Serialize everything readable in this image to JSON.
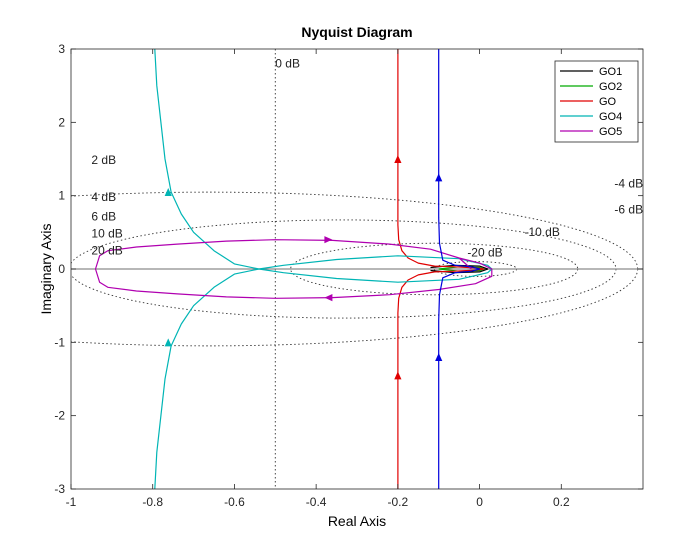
{
  "chart_data": {
    "type": "line",
    "title": "Nyquist Diagram",
    "xlabel": "Real Axis",
    "ylabel": "Imaginary Axis",
    "xlim": [
      -1,
      0.4
    ],
    "ylim": [
      -3,
      3
    ],
    "xticks": [
      -1,
      -0.8,
      -0.6,
      -0.4,
      -0.2,
      0,
      0.2
    ],
    "xtick_labels": [
      "-1",
      "-0.8",
      "-0.6",
      "-0.4",
      "-0.2",
      "0",
      "0.2"
    ],
    "yticks": [
      -3,
      -2,
      -1,
      0,
      1,
      2,
      3
    ],
    "ytick_labels": [
      "-3",
      "-2",
      "-1",
      "0",
      "1",
      "2",
      "3"
    ],
    "grid": "M-circles (constant gain contours, dotted)",
    "legend_position": "top-right",
    "m_circle_labels": [
      {
        "text": "0 dB",
        "x": -0.5,
        "y": 2.75
      },
      {
        "text": "2 dB",
        "x": -0.95,
        "y": 1.43
      },
      {
        "text": "4 dB",
        "x": -0.95,
        "y": 0.93
      },
      {
        "text": "6 dB",
        "x": -0.95,
        "y": 0.66
      },
      {
        "text": "10 dB",
        "x": -0.95,
        "y": 0.43
      },
      {
        "text": "20 dB",
        "x": -0.95,
        "y": 0.2
      },
      {
        "text": "-20 dB",
        "x": -0.03,
        "y": 0.17
      },
      {
        "text": "-10 dB",
        "x": 0.11,
        "y": 0.45
      },
      {
        "text": "-6 dB",
        "x": 0.33,
        "y": 0.76
      },
      {
        "text": "-4 dB",
        "x": 0.33,
        "y": 1.11
      }
    ],
    "series": [
      {
        "name": "GO1",
        "color": "#000000",
        "points": [
          [
            -0.12,
            0.02
          ],
          [
            -0.06,
            0.05
          ],
          [
            0.0,
            0.04
          ],
          [
            0.02,
            0.0
          ],
          [
            0.0,
            -0.04
          ],
          [
            -0.06,
            -0.05
          ],
          [
            -0.12,
            -0.02
          ]
        ]
      },
      {
        "name": "GO2",
        "color": "#00aa00",
        "points": [
          [
            -0.1,
            0.0
          ],
          [
            -0.05,
            0.03
          ],
          [
            0.0,
            0.02
          ],
          [
            0.01,
            0.0
          ],
          [
            0.0,
            -0.02
          ],
          [
            -0.05,
            -0.03
          ],
          [
            -0.1,
            0.0
          ]
        ]
      },
      {
        "name": "GO",
        "color": "#e00000",
        "points": [
          [
            -0.2,
            3
          ],
          [
            -0.2,
            2
          ],
          [
            -0.2,
            1.5
          ],
          [
            -0.2,
            1
          ],
          [
            -0.2,
            0.6
          ],
          [
            -0.198,
            0.4
          ],
          [
            -0.19,
            0.25
          ],
          [
            -0.175,
            0.15
          ],
          [
            -0.15,
            0.08
          ],
          [
            -0.11,
            0.04
          ],
          [
            -0.06,
            0.03
          ],
          [
            -0.01,
            0.015
          ],
          [
            0.01,
            0
          ],
          [
            -0.01,
            -0.015
          ],
          [
            -0.06,
            -0.03
          ],
          [
            -0.11,
            -0.04
          ],
          [
            -0.15,
            -0.08
          ],
          [
            -0.175,
            -0.15
          ],
          [
            -0.19,
            -0.25
          ],
          [
            -0.198,
            -0.4
          ],
          [
            -0.2,
            -0.6
          ],
          [
            -0.2,
            -1
          ],
          [
            -0.2,
            -1.5
          ],
          [
            -0.2,
            -2
          ],
          [
            -0.2,
            -3
          ]
        ]
      },
      {
        "name": "GO4",
        "color": "#00b5b5",
        "points": [
          [
            -0.795,
            3
          ],
          [
            -0.79,
            2.5
          ],
          [
            -0.78,
            2.0
          ],
          [
            -0.77,
            1.5
          ],
          [
            -0.755,
            1.05
          ],
          [
            -0.73,
            0.75
          ],
          [
            -0.7,
            0.5
          ],
          [
            -0.65,
            0.25
          ],
          [
            -0.6,
            0.07
          ],
          [
            -0.54,
            0.0
          ],
          [
            -0.48,
            0.05
          ],
          [
            -0.35,
            0.13
          ],
          [
            -0.2,
            0.18
          ],
          [
            -0.05,
            0.14
          ],
          [
            0.02,
            0.05
          ],
          [
            0.03,
            0.0
          ],
          [
            0.02,
            -0.05
          ],
          [
            -0.05,
            -0.14
          ],
          [
            -0.2,
            -0.18
          ],
          [
            -0.35,
            -0.13
          ],
          [
            -0.48,
            -0.05
          ],
          [
            -0.54,
            0.0
          ],
          [
            -0.6,
            -0.07
          ],
          [
            -0.65,
            -0.25
          ],
          [
            -0.7,
            -0.5
          ],
          [
            -0.73,
            -0.75
          ],
          [
            -0.755,
            -1.05
          ],
          [
            -0.77,
            -1.5
          ],
          [
            -0.78,
            -2.0
          ],
          [
            -0.79,
            -2.5
          ],
          [
            -0.795,
            -3
          ]
        ]
      },
      {
        "name": "GO5",
        "color": "#b000b0",
        "points": [
          [
            -0.02,
            0.0
          ],
          [
            -0.05,
            0.15
          ],
          [
            -0.12,
            0.27
          ],
          [
            -0.22,
            0.34
          ],
          [
            -0.36,
            0.39
          ],
          [
            -0.5,
            0.4
          ],
          [
            -0.62,
            0.38
          ],
          [
            -0.74,
            0.34
          ],
          [
            -0.84,
            0.3
          ],
          [
            -0.91,
            0.25
          ],
          [
            -0.93,
            0.18
          ],
          [
            -0.94,
            0.0
          ],
          [
            -0.93,
            -0.18
          ],
          [
            -0.91,
            -0.25
          ],
          [
            -0.84,
            -0.3
          ],
          [
            -0.74,
            -0.34
          ],
          [
            -0.62,
            -0.38
          ],
          [
            -0.5,
            -0.4
          ],
          [
            -0.36,
            -0.39
          ],
          [
            -0.22,
            -0.35
          ],
          [
            -0.1,
            -0.28
          ],
          [
            -0.01,
            -0.2
          ],
          [
            0.03,
            -0.1
          ],
          [
            0.03,
            0.0
          ],
          [
            0.0,
            0.08
          ],
          [
            -0.05,
            0.15
          ]
        ]
      },
      {
        "name": "",
        "color": "#0000dd",
        "points": [
          [
            -0.1,
            3
          ],
          [
            -0.1,
            2
          ],
          [
            -0.1,
            1.25
          ],
          [
            -0.1,
            0.7
          ],
          [
            -0.098,
            0.35
          ],
          [
            -0.09,
            0.12
          ],
          [
            -0.06,
            0.05
          ],
          [
            -0.02,
            0.03
          ],
          [
            0.0,
            0.0
          ],
          [
            -0.02,
            -0.03
          ],
          [
            -0.06,
            -0.05
          ],
          [
            -0.09,
            -0.12
          ],
          [
            -0.098,
            -0.35
          ],
          [
            -0.1,
            -0.7
          ],
          [
            -0.1,
            -1.25
          ],
          [
            -0.1,
            -2
          ],
          [
            -0.1,
            -3
          ]
        ]
      }
    ],
    "arrows": [
      {
        "series": "GO4",
        "x": -0.762,
        "y": 1.05,
        "dir": "up"
      },
      {
        "series": "GO4",
        "x": -0.762,
        "y": -1.0,
        "dir": "up"
      },
      {
        "series": "GO",
        "x": -0.2,
        "y": 1.5,
        "dir": "up"
      },
      {
        "series": "GO",
        "x": -0.2,
        "y": -1.45,
        "dir": "up"
      },
      {
        "series": "",
        "x": -0.1,
        "y": 1.25,
        "dir": "up"
      },
      {
        "series": "",
        "x": -0.1,
        "y": -1.2,
        "dir": "up"
      },
      {
        "series": "GO5",
        "x": -0.37,
        "y": 0.4,
        "dir": "right"
      },
      {
        "series": "GO5",
        "x": -0.37,
        "y": -0.39,
        "dir": "left"
      }
    ]
  }
}
